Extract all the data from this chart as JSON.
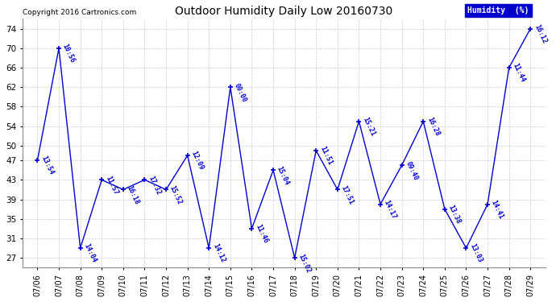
{
  "title": "Outdoor Humidity Daily Low 20160730",
  "copyright_text": "Copyright 2016 Cartronics.com",
  "background_color": "#ffffff",
  "line_color": "#0000cc",
  "grid_color": "#cccccc",
  "ylim": [
    25,
    76
  ],
  "yticks": [
    27,
    31,
    35,
    39,
    43,
    47,
    50,
    54,
    58,
    62,
    66,
    70,
    74
  ],
  "points": [
    {
      "date": "07/06",
      "value": 47,
      "label": "13:54"
    },
    {
      "date": "07/07",
      "value": 70,
      "label": "10:56"
    },
    {
      "date": "07/08",
      "value": 29,
      "label": "14:04"
    },
    {
      "date": "07/09",
      "value": 43,
      "label": "11:57"
    },
    {
      "date": "07/10",
      "value": 41,
      "label": "16:18"
    },
    {
      "date": "07/11",
      "value": 43,
      "label": "17:32"
    },
    {
      "date": "07/12",
      "value": 41,
      "label": "15:52"
    },
    {
      "date": "07/13",
      "value": 48,
      "label": "12:09"
    },
    {
      "date": "07/14",
      "value": 29,
      "label": "14:12"
    },
    {
      "date": "07/15",
      "value": 62,
      "label": "00:00"
    },
    {
      "date": "07/16",
      "value": 33,
      "label": "11:46"
    },
    {
      "date": "07/17",
      "value": 45,
      "label": "15:04"
    },
    {
      "date": "07/18",
      "value": 27,
      "label": "15:02"
    },
    {
      "date": "07/19",
      "value": 49,
      "label": "11:51"
    },
    {
      "date": "07/20",
      "value": 41,
      "label": "17:51"
    },
    {
      "date": "07/21",
      "value": 55,
      "label": "15:21"
    },
    {
      "date": "07/22",
      "value": 38,
      "label": "14:17"
    },
    {
      "date": "07/23",
      "value": 46,
      "label": "09:40"
    },
    {
      "date": "07/24",
      "value": 55,
      "label": "16:28"
    },
    {
      "date": "07/25",
      "value": 37,
      "label": "13:38"
    },
    {
      "date": "07/26",
      "value": 29,
      "label": "13:03"
    },
    {
      "date": "07/27",
      "value": 38,
      "label": "14:41"
    },
    {
      "date": "07/28",
      "value": 66,
      "label": "11:44"
    },
    {
      "date": "07/29",
      "value": 74,
      "label": "16:12"
    }
  ],
  "legend_box_color": "#0000cc",
  "legend_text_color": "#ffffff",
  "legend_text": "Humidity  (%)"
}
